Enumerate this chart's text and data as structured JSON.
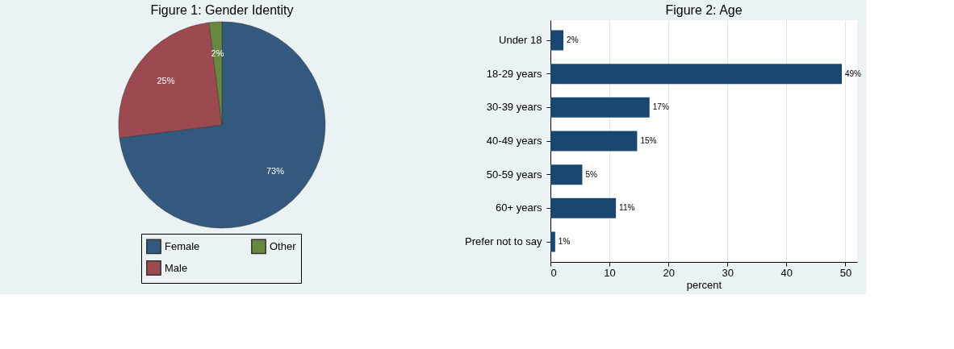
{
  "chart_data": [
    {
      "type": "pie",
      "title": "Figure 1: Gender Identity",
      "categories": [
        "Female",
        "Male",
        "Other"
      ],
      "values": [
        73,
        25,
        2
      ],
      "colors": [
        "#335a7e",
        "#9c4a50",
        "#66893f"
      ],
      "value_labels": [
        "73%",
        "25%",
        "2%"
      ],
      "legend": "bottom"
    },
    {
      "type": "bar",
      "orientation": "horizontal",
      "title": "Figure 2: Age",
      "xlabel": "percent",
      "categories": [
        "Under 18",
        "18-29 years",
        "30-39 years",
        "40-49 years",
        "50-59 years",
        "60+ years",
        "Prefer not to say"
      ],
      "values": [
        2.2,
        49.4,
        16.8,
        14.7,
        5.4,
        11.1,
        0.8
      ],
      "color": "#1a476f",
      "value_labels": [
        "2%",
        "49%",
        "17%",
        "15%",
        "5%",
        "11%",
        "1%"
      ],
      "xlim": [
        0,
        52
      ],
      "xticks": [
        0,
        10,
        20,
        30,
        40,
        50
      ],
      "grid": "x"
    }
  ]
}
